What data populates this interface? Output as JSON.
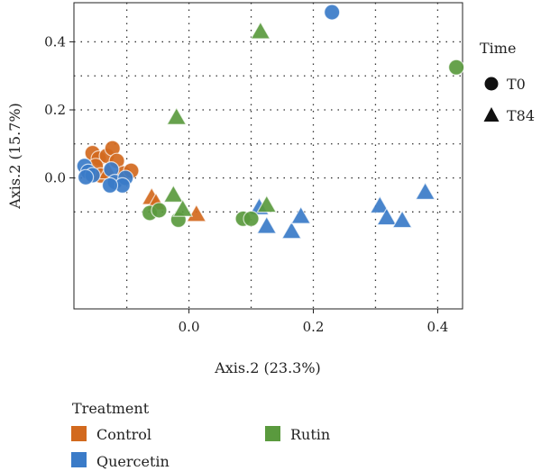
{
  "chart_data": {
    "type": "scatter",
    "title": "",
    "xlabel": "Axis.2 (23.3%)",
    "ylabel": "Axis.2 (15.7%)",
    "xlim": [
      -0.185,
      0.44
    ],
    "ylim": [
      -0.385,
      0.515
    ],
    "x_ticks": [
      0.0,
      0.2,
      0.4
    ],
    "x_tick_labels": [
      "0.0",
      "0.2",
      "0.4"
    ],
    "y_ticks": [
      0.0,
      0.2,
      0.4
    ],
    "y_tick_labels": [
      "0.0",
      "0.2",
      "0.4"
    ],
    "x_grid": [
      -0.1,
      0.0,
      0.1,
      0.2,
      0.3,
      0.4
    ],
    "y_grid": [
      -0.1,
      0.0,
      0.1,
      0.2,
      0.3,
      0.4
    ],
    "grid": "dotted",
    "shape_legend": {
      "title": "Time",
      "placement": "right",
      "entries": [
        {
          "label": "T0",
          "shape": "circle"
        },
        {
          "label": "T84",
          "shape": "triangle"
        }
      ]
    },
    "color_legend": {
      "title": "Treatment",
      "placement": "bottom",
      "entries": [
        {
          "label": "Control",
          "color": "#D2691E"
        },
        {
          "label": "Quercetin",
          "color": "#3A7BC8"
        },
        {
          "label": "Rutin",
          "color": "#5A9A3E"
        }
      ]
    },
    "series": [
      {
        "name": "Control",
        "color": "#D2691E",
        "points": [
          {
            "x": -0.155,
            "y": 0.073,
            "time": "T0"
          },
          {
            "x": -0.145,
            "y": 0.057,
            "time": "T0"
          },
          {
            "x": -0.132,
            "y": 0.065,
            "time": "T0"
          },
          {
            "x": -0.123,
            "y": 0.087,
            "time": "T0"
          },
          {
            "x": -0.15,
            "y": 0.035,
            "time": "T0"
          },
          {
            "x": -0.116,
            "y": 0.05,
            "time": "T0"
          },
          {
            "x": -0.142,
            "y": 0.007,
            "time": "T0"
          },
          {
            "x": -0.105,
            "y": 0.013,
            "time": "T0"
          },
          {
            "x": -0.093,
            "y": 0.021,
            "time": "T0"
          },
          {
            "x": -0.13,
            "y": 0.018,
            "time": "T84"
          },
          {
            "x": -0.06,
            "y": -0.057,
            "time": "T84"
          },
          {
            "x": -0.053,
            "y": -0.073,
            "time": "T84"
          },
          {
            "x": 0.012,
            "y": -0.107,
            "time": "T84"
          }
        ]
      },
      {
        "name": "Quercetin",
        "color": "#3A7BC8",
        "points": [
          {
            "x": -0.168,
            "y": 0.035,
            "time": "T0"
          },
          {
            "x": -0.162,
            "y": 0.018,
            "time": "T0"
          },
          {
            "x": -0.155,
            "y": 0.008,
            "time": "T0"
          },
          {
            "x": -0.166,
            "y": 0.002,
            "time": "T0"
          },
          {
            "x": -0.125,
            "y": 0.025,
            "time": "T0"
          },
          {
            "x": -0.119,
            "y": -0.012,
            "time": "T0"
          },
          {
            "x": -0.102,
            "y": 0.0,
            "time": "T0"
          },
          {
            "x": -0.107,
            "y": -0.022,
            "time": "T0"
          },
          {
            "x": -0.127,
            "y": -0.022,
            "time": "T0"
          },
          {
            "x": 0.23,
            "y": 0.487,
            "time": "T0"
          },
          {
            "x": 0.113,
            "y": -0.087,
            "time": "T84"
          },
          {
            "x": 0.125,
            "y": -0.142,
            "time": "T84"
          },
          {
            "x": 0.165,
            "y": -0.157,
            "time": "T84"
          },
          {
            "x": 0.18,
            "y": -0.113,
            "time": "T84"
          },
          {
            "x": 0.307,
            "y": -0.082,
            "time": "T84"
          },
          {
            "x": 0.318,
            "y": -0.117,
            "time": "T84"
          },
          {
            "x": 0.343,
            "y": -0.125,
            "time": "T84"
          },
          {
            "x": 0.38,
            "y": -0.042,
            "time": "T84"
          }
        ]
      },
      {
        "name": "Rutin",
        "color": "#5A9A3E",
        "points": [
          {
            "x": -0.063,
            "y": -0.103,
            "time": "T0"
          },
          {
            "x": -0.048,
            "y": -0.095,
            "time": "T0"
          },
          {
            "x": -0.017,
            "y": -0.123,
            "time": "T0"
          },
          {
            "x": 0.087,
            "y": -0.12,
            "time": "T0"
          },
          {
            "x": 0.1,
            "y": -0.12,
            "time": "T0"
          },
          {
            "x": 0.43,
            "y": 0.325,
            "time": "T0"
          },
          {
            "x": 0.115,
            "y": 0.43,
            "time": "T84"
          },
          {
            "x": -0.02,
            "y": 0.178,
            "time": "T84"
          },
          {
            "x": -0.025,
            "y": -0.05,
            "time": "T84"
          },
          {
            "x": -0.01,
            "y": -0.092,
            "time": "T84"
          },
          {
            "x": 0.125,
            "y": -0.08,
            "time": "T84"
          }
        ]
      }
    ]
  }
}
